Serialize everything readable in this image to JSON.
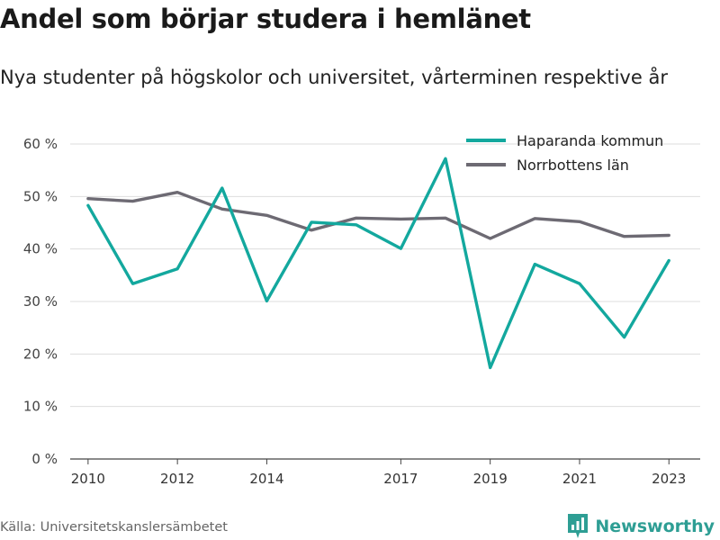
{
  "title": "Andel som börjar studera i hemlänet",
  "subtitle": "Nya studenter på högskolor och universitet, vårterminen respektive år",
  "source": "Källa: Universitetskanslersämbetet",
  "brand": {
    "name": "Newsworthy",
    "icon": "newsworthy-logo-icon",
    "color": "#2e9e94"
  },
  "chart_data": {
    "type": "line",
    "title": "Andel som börjar studera i hemlänet",
    "subtitle": "Nya studenter på högskolor och universitet, vårterminen respektive år",
    "xlabel": "",
    "ylabel": "",
    "x": [
      2010,
      2011,
      2012,
      2013,
      2014,
      2015,
      2016,
      2017,
      2018,
      2019,
      2020,
      2021,
      2022,
      2023
    ],
    "x_ticks": [
      2010,
      2012,
      2014,
      2017,
      2019,
      2021,
      2023
    ],
    "x_range": [
      2009.6,
      2023.7
    ],
    "y_ticks": [
      {
        "value": 0,
        "label": "0 %"
      },
      {
        "value": 10,
        "label": "10 %"
      },
      {
        "value": 20,
        "label": "20 %"
      },
      {
        "value": 30,
        "label": "30 %"
      },
      {
        "value": 40,
        "label": "40 %"
      },
      {
        "value": 50,
        "label": "50 %"
      },
      {
        "value": 60,
        "label": "60 %"
      }
    ],
    "ylim": [
      0,
      60
    ],
    "grid": true,
    "legend_position": "top-right",
    "series": [
      {
        "name": "Haparanda kommun",
        "color": "#13a89e",
        "values": [
          48.3,
          33.4,
          36.2,
          51.6,
          30.1,
          45.1,
          44.6,
          40.1,
          57.2,
          17.4,
          37.1,
          33.4,
          23.2,
          37.8
        ]
      },
      {
        "name": "Norrbottens län",
        "color": "#6d6a73",
        "values": [
          49.6,
          49.1,
          50.8,
          47.6,
          46.4,
          43.6,
          45.9,
          45.7,
          45.9,
          42.0,
          45.8,
          45.2,
          42.4,
          42.6
        ]
      }
    ]
  }
}
